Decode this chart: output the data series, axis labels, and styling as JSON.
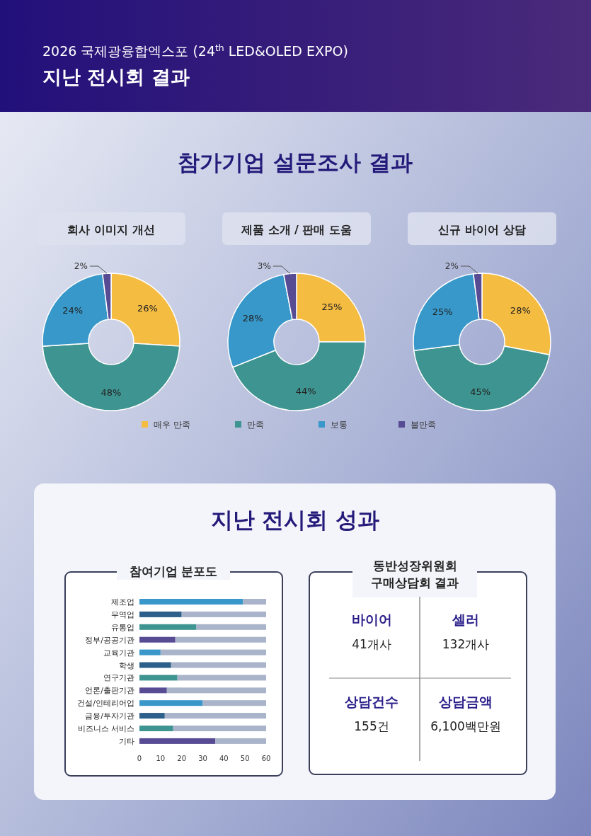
{
  "chart_data": [
    {
      "type": "other",
      "title": "지난 전시회 결과",
      "subtitle": "2026 국제광융합엑스포 (24$^{th}$ LED&OLED EXPO)",
      "annotations": [
        "참가기업 설문조사 결과"
      ]
    },
    {
      "type": "donut",
      "title": "회사 이미지 개선",
      "values": [
        26,
        48,
        24,
        2
      ],
      "colors": [
        "#f5bc42",
        "#3e9490",
        "#3898c9",
        "#574b94"
      ],
      "value_labels": [
        "26%",
        "48%",
        "24%",
        "2%"
      ]
    },
    {
      "type": "donut",
      "title": "제품 소개 / 판매 도움",
      "categories": [
        "매우 만족",
        "만족",
        "보통",
        "불만족"
      ],
      "values": [
        25,
        44,
        28,
        3
      ],
      "colors": [
        "#f5bc42",
        "#3e9490",
        "#3898c9",
        "#574b94"
      ],
      "value_labels": [
        "25%",
        "44%",
        "28%",
        "3%"
      ],
      "legend": "bottom"
    },
    {
      "type": "donut",
      "title": "신규 바이어 상담",
      "values": [
        28,
        45,
        25,
        2
      ],
      "colors": [
        "#f5bc42",
        "#3e9490",
        "#3898c9",
        "#574b94"
      ],
      "value_labels": [
        "28%",
        "45%",
        "25%",
        "2%"
      ]
    },
    {
      "type": "other",
      "title": "지난 전시회 성과"
    },
    {
      "type": "bar",
      "title": "참여기업 분포도",
      "orientation": "horizontal",
      "stacked": true,
      "categories": [
        "제조업",
        "무역업",
        "유통업",
        "정부/공공기관",
        "교육기관",
        "학생",
        "연구기관",
        "언론/출판기관",
        "건설/인테리어업",
        "금융/투자기관",
        "비즈니스 서비스",
        "기타"
      ],
      "xlim": [
        0,
        60
      ],
      "xticks": [
        0,
        10,
        20,
        30,
        40,
        50,
        60
      ],
      "series": [
        {
          "colors": [
            "#3a97c9",
            "#2c5f8a",
            "#3e9490",
            "#574b94",
            "#3a97c9",
            "#2c5f8a",
            "#3e9490",
            "#574b94",
            "#3a97c9",
            "#2c5f8a",
            "#3e9490",
            "#574b94"
          ],
          "values": [
            49,
            20,
            27,
            17,
            10,
            15,
            18,
            13,
            30,
            12,
            16,
            36
          ]
        },
        {
          "color": "#a9b3c9",
          "values": [
            11,
            40,
            33,
            43,
            50,
            45,
            42,
            47,
            30,
            48,
            44,
            24
          ]
        }
      ]
    },
    {
      "type": "other",
      "title": "동반성장위원회\n구매상담회 결과",
      "annotations": [
        "바이어",
        "41개사",
        "셀러",
        "132개사",
        "상담건수",
        "155건",
        "상담금액",
        "6,100백만원"
      ]
    }
  ]
}
